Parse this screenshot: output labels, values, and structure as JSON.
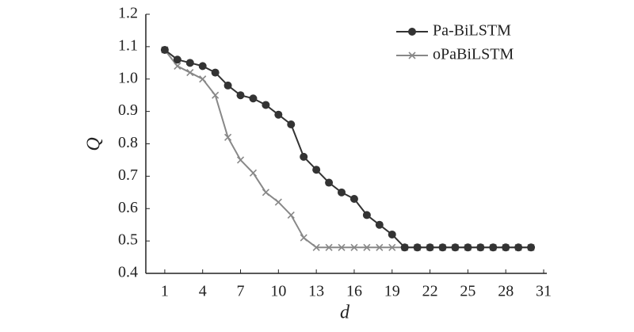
{
  "chart_data": {
    "type": "line",
    "x": [
      1,
      2,
      3,
      4,
      5,
      6,
      7,
      8,
      9,
      10,
      11,
      12,
      13,
      14,
      15,
      16,
      17,
      18,
      19,
      20,
      21,
      22,
      23,
      24,
      25,
      26,
      27,
      28,
      29,
      30
    ],
    "series": [
      {
        "name": "Pa-BiLSTM",
        "color": "#333333",
        "marker": "circle",
        "values": [
          1.09,
          1.06,
          1.05,
          1.04,
          1.02,
          0.98,
          0.95,
          0.94,
          0.92,
          0.89,
          0.86,
          0.76,
          0.72,
          0.68,
          0.65,
          0.63,
          0.58,
          0.55,
          0.52,
          0.48,
          0.48,
          0.48,
          0.48,
          0.48,
          0.48,
          0.48,
          0.48,
          0.48,
          0.48,
          0.48
        ]
      },
      {
        "name": "oPaBiLSTM",
        "color": "#888888",
        "marker": "x",
        "values": [
          1.09,
          1.04,
          1.02,
          1.0,
          0.95,
          0.82,
          0.75,
          0.71,
          0.65,
          0.62,
          0.58,
          0.51,
          0.48,
          0.48,
          0.48,
          0.48,
          0.48,
          0.48,
          0.48,
          0.48,
          0.48,
          0.48,
          0.48,
          0.48,
          0.48,
          0.48,
          0.48,
          0.48,
          0.48,
          0.48
        ]
      }
    ],
    "xlabel": "d",
    "ylabel": "Q",
    "xlim": [
      -0.5,
      31
    ],
    "xticks": [
      1,
      4,
      7,
      10,
      13,
      16,
      19,
      22,
      25,
      28,
      31
    ],
    "ylim": [
      0.4,
      1.2
    ],
    "yticks": [
      0.4,
      0.5,
      0.6,
      0.7,
      0.8,
      0.9,
      {
        "value": 1.0,
        "label": "1.0"
      },
      1.1,
      1.2
    ],
    "legend": "upper-right"
  }
}
